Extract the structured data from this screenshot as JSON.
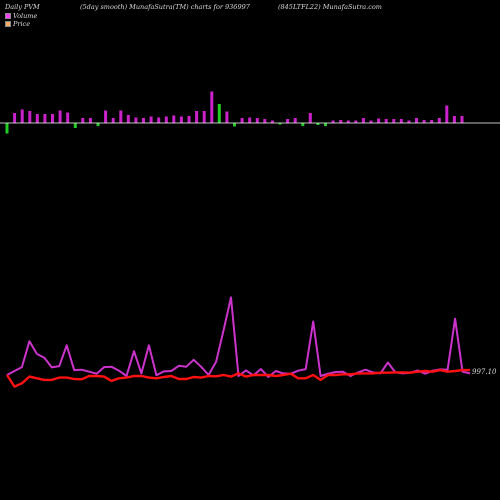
{
  "header": {
    "left": "Daily PVM",
    "middle": "(5day smooth) MunafaSutra(TM) charts for 936997",
    "right": "(845LTFL22) MunafaSutra.com"
  },
  "legend": {
    "volume_label": "Volume",
    "price_label": "Price",
    "volume_color": "#ff44ff",
    "price_color": "#ffaa66"
  },
  "last_price_label": "997.10",
  "colors": {
    "up_bar": "#cc22cc",
    "down_bar": "#22cc22",
    "baseline": "#ffffff",
    "volume_line": "#cc33cc",
    "price_line": "#ff1111",
    "background": "#000000"
  },
  "chart_data": [
    {
      "type": "bar",
      "title": "Volume",
      "values": [
        -2.1,
        2.0,
        2.7,
        2.4,
        1.8,
        1.8,
        1.8,
        2.5,
        2.1,
        -1.0,
        1.0,
        1.0,
        -0.6,
        2.5,
        1.0,
        2.5,
        1.6,
        1.1,
        1.0,
        1.3,
        1.1,
        1.3,
        1.5,
        1.3,
        1.4,
        2.4,
        2.4,
        6.3,
        3.8,
        2.3,
        -0.7,
        1.0,
        1.1,
        1.0,
        0.8,
        0.5,
        -0.3,
        0.8,
        1.0,
        -0.6,
        2.0,
        -0.4,
        -0.6,
        0.5,
        0.6,
        0.5,
        0.5,
        1.0,
        0.5,
        0.9,
        0.8,
        0.8,
        0.8,
        0.5,
        1.0,
        0.6,
        0.6,
        1.0,
        3.5,
        1.4,
        1.4
      ],
      "colors": [
        "down",
        "up",
        "up",
        "up",
        "up",
        "up",
        "up",
        "up",
        "up",
        "down",
        "up",
        "up",
        "down",
        "up",
        "up",
        "up",
        "up",
        "up",
        "up",
        "up",
        "up",
        "up",
        "up",
        "up",
        "up",
        "up",
        "up",
        "up",
        "down",
        "up",
        "down",
        "up",
        "up",
        "up",
        "up",
        "up",
        "down",
        "up",
        "up",
        "down",
        "up",
        "down",
        "down",
        "up",
        "up",
        "up",
        "up",
        "up",
        "up",
        "up",
        "up",
        "up",
        "up",
        "up",
        "up",
        "up",
        "up",
        "up",
        "up",
        "up",
        "up"
      ]
    },
    {
      "type": "line",
      "series": [
        {
          "name": "Volume",
          "values": [
            0,
            1.2,
            2.4,
            10.2,
            6.4,
            5.2,
            2.3,
            2.7,
            9.0,
            1.5,
            1.6,
            1.0,
            0.4,
            2.4,
            2.5,
            1.3,
            -0.3,
            7.2,
            0.5,
            9.0,
            -0.1,
            1.1,
            1.2,
            2.8,
            2.5,
            4.6,
            2.5,
            0.0,
            4.0,
            13.6,
            23.5,
            -0.3,
            1.4,
            -0.1,
            1.8,
            -0.6,
            1.2,
            0.5,
            0.4,
            1.3,
            1.8,
            16.2,
            -0.3,
            0.4,
            0.9,
            1.0,
            -0.3,
            0.8,
            1.6,
            0.8,
            0.5,
            3.8,
            0.8,
            0.5,
            0.7,
            1.4,
            0.4,
            1.3,
            1.7,
            1.6,
            17.1,
            1.0,
            0.5
          ]
        },
        {
          "name": "Price",
          "values": [
            0,
            -3.5,
            -2.5,
            -0.5,
            -1.0,
            -1.5,
            -1.5,
            -0.8,
            -0.8,
            -1.2,
            -1.3,
            -0.3,
            -0.3,
            -0.5,
            -1.8,
            -1.0,
            -0.8,
            -0.3,
            -0.3,
            -0.8,
            -1.0,
            -0.6,
            -0.3,
            -1.2,
            -1.2,
            -0.6,
            -0.8,
            -0.3,
            -0.4,
            0.0,
            -0.5,
            0.5,
            -0.5,
            0.0,
            0.0,
            0.0,
            -0.3,
            0.0,
            0.4,
            -1.0,
            -1.0,
            0.0,
            -1.5,
            0.0,
            0.0,
            0.2,
            0.2,
            0.5,
            0.5,
            0.5,
            0.7,
            0.7,
            0.8,
            0.8,
            0.7,
            1.0,
            1.2,
            1.0,
            1.5,
            1.0,
            1.2,
            1.5,
            1.5
          ]
        }
      ]
    }
  ]
}
